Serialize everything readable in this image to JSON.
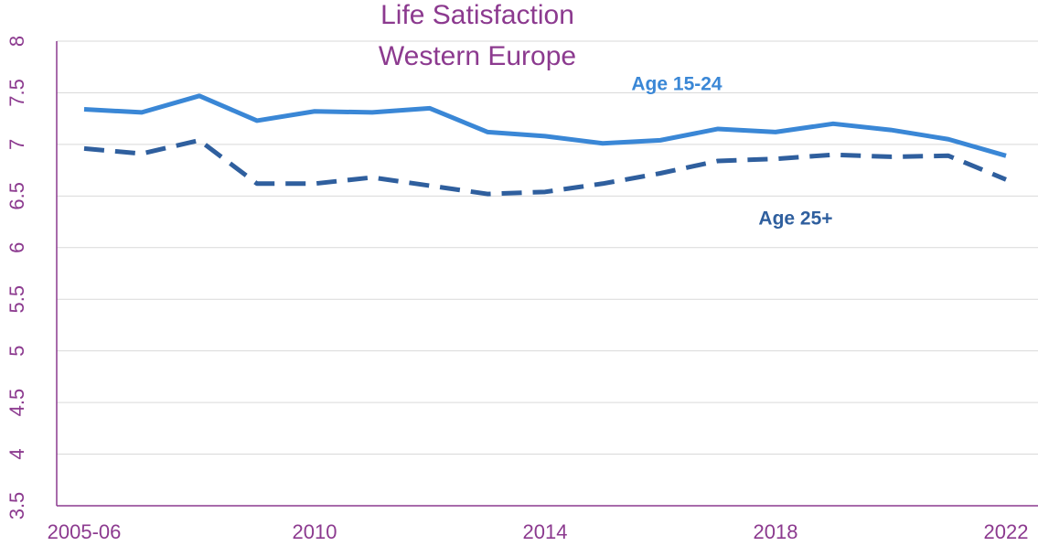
{
  "chart_data": {
    "type": "line",
    "title": "Life Satisfaction",
    "subtitle": "Western Europe",
    "categories": [
      "2005-06",
      null,
      null,
      null,
      "2010",
      null,
      null,
      null,
      "2014",
      null,
      null,
      null,
      "2018",
      null,
      null,
      null,
      "2022"
    ],
    "series": [
      {
        "name": "Age 15-24",
        "color": "#3a87d6",
        "style": "solid",
        "values": [
          7.34,
          7.31,
          7.47,
          7.23,
          7.32,
          7.31,
          7.35,
          7.12,
          7.08,
          7.01,
          7.04,
          7.15,
          7.12,
          7.2,
          7.14,
          7.05,
          6.89
        ]
      },
      {
        "name": "Age 25+",
        "color": "#2f5f9e",
        "style": "dashed",
        "values": [
          6.96,
          6.91,
          7.04,
          6.62,
          6.62,
          6.68,
          6.6,
          6.52,
          6.54,
          6.62,
          6.72,
          6.84,
          6.86,
          6.9,
          6.88,
          6.89,
          6.66
        ]
      }
    ],
    "ylim": [
      3.5,
      8
    ],
    "yticks": [
      3.5,
      4,
      4.5,
      5,
      5.5,
      6,
      6.5,
      7,
      7.5,
      8
    ],
    "grid": true
  }
}
